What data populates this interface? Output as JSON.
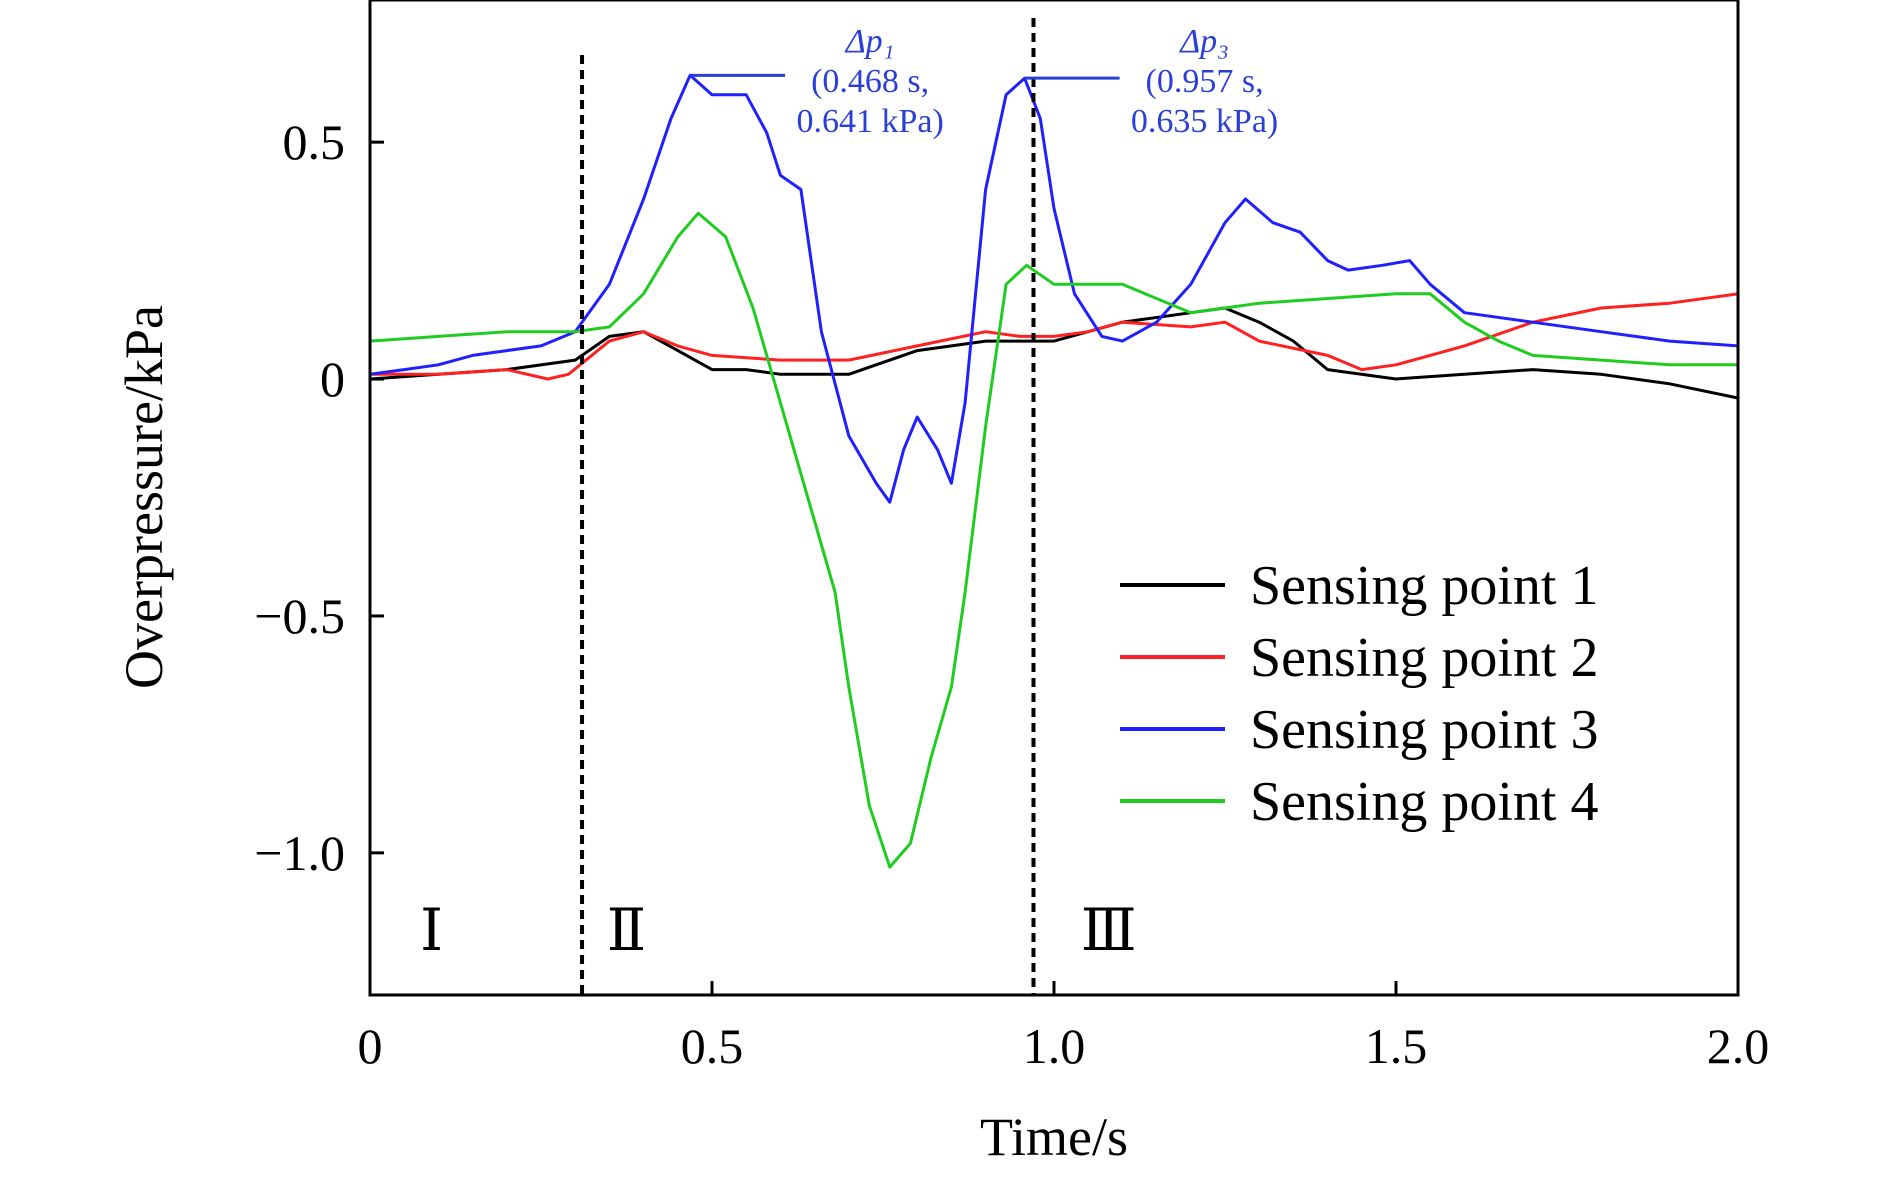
{
  "chart_data": {
    "type": "line",
    "xlabel": "Time/s",
    "ylabel": "Overpressure/kPa",
    "xlim": [
      0,
      2.0
    ],
    "ylim": [
      -1.3,
      0.8
    ],
    "x_ticks": [
      0,
      0.5,
      1.0,
      1.5,
      2.0
    ],
    "x_tick_labels": [
      "0",
      "0.5",
      "1.0",
      "1.5",
      "2.0"
    ],
    "y_ticks": [
      -1.0,
      -0.5,
      0,
      0.5
    ],
    "y_tick_labels": [
      "−1.0",
      "−0.5",
      "0",
      "0.5"
    ],
    "grid": false,
    "legend_position": "lower-right",
    "series": [
      {
        "name": "Sensing point 1",
        "color": "#000000",
        "points": [
          [
            0,
            0.0
          ],
          [
            0.1,
            0.01
          ],
          [
            0.2,
            0.02
          ],
          [
            0.3,
            0.04
          ],
          [
            0.35,
            0.09
          ],
          [
            0.4,
            0.1
          ],
          [
            0.45,
            0.06
          ],
          [
            0.5,
            0.02
          ],
          [
            0.55,
            0.02
          ],
          [
            0.6,
            0.01
          ],
          [
            0.7,
            0.01
          ],
          [
            0.8,
            0.06
          ],
          [
            0.9,
            0.08
          ],
          [
            1.0,
            0.08
          ],
          [
            1.1,
            0.12
          ],
          [
            1.2,
            0.14
          ],
          [
            1.25,
            0.15
          ],
          [
            1.3,
            0.12
          ],
          [
            1.35,
            0.08
          ],
          [
            1.4,
            0.02
          ],
          [
            1.5,
            0.0
          ],
          [
            1.6,
            0.01
          ],
          [
            1.7,
            0.02
          ],
          [
            1.8,
            0.01
          ],
          [
            1.9,
            -0.01
          ],
          [
            2.0,
            -0.04
          ]
        ]
      },
      {
        "name": "Sensing point 2",
        "color": "#ff2020",
        "points": [
          [
            0,
            0.01
          ],
          [
            0.1,
            0.01
          ],
          [
            0.2,
            0.02
          ],
          [
            0.26,
            0.0
          ],
          [
            0.29,
            0.01
          ],
          [
            0.35,
            0.08
          ],
          [
            0.4,
            0.1
          ],
          [
            0.45,
            0.07
          ],
          [
            0.5,
            0.05
          ],
          [
            0.6,
            0.04
          ],
          [
            0.7,
            0.04
          ],
          [
            0.8,
            0.07
          ],
          [
            0.9,
            0.1
          ],
          [
            0.95,
            0.09
          ],
          [
            1.0,
            0.09
          ],
          [
            1.05,
            0.1
          ],
          [
            1.1,
            0.12
          ],
          [
            1.2,
            0.11
          ],
          [
            1.25,
            0.12
          ],
          [
            1.3,
            0.08
          ],
          [
            1.4,
            0.05
          ],
          [
            1.45,
            0.02
          ],
          [
            1.5,
            0.03
          ],
          [
            1.6,
            0.07
          ],
          [
            1.7,
            0.12
          ],
          [
            1.8,
            0.15
          ],
          [
            1.9,
            0.16
          ],
          [
            2.0,
            0.18
          ]
        ]
      },
      {
        "name": "Sensing point 3",
        "color": "#2020ff",
        "points": [
          [
            0,
            0.01
          ],
          [
            0.05,
            0.02
          ],
          [
            0.1,
            0.03
          ],
          [
            0.15,
            0.05
          ],
          [
            0.2,
            0.06
          ],
          [
            0.25,
            0.07
          ],
          [
            0.3,
            0.1
          ],
          [
            0.35,
            0.2
          ],
          [
            0.4,
            0.38
          ],
          [
            0.44,
            0.55
          ],
          [
            0.468,
            0.641
          ],
          [
            0.5,
            0.6
          ],
          [
            0.55,
            0.6
          ],
          [
            0.58,
            0.52
          ],
          [
            0.6,
            0.43
          ],
          [
            0.63,
            0.4
          ],
          [
            0.66,
            0.1
          ],
          [
            0.7,
            -0.12
          ],
          [
            0.74,
            -0.22
          ],
          [
            0.76,
            -0.26
          ],
          [
            0.78,
            -0.15
          ],
          [
            0.8,
            -0.08
          ],
          [
            0.83,
            -0.15
          ],
          [
            0.85,
            -0.22
          ],
          [
            0.87,
            -0.05
          ],
          [
            0.9,
            0.4
          ],
          [
            0.93,
            0.6
          ],
          [
            0.957,
            0.635
          ],
          [
            0.98,
            0.55
          ],
          [
            1.0,
            0.36
          ],
          [
            1.03,
            0.18
          ],
          [
            1.07,
            0.09
          ],
          [
            1.1,
            0.08
          ],
          [
            1.15,
            0.12
          ],
          [
            1.2,
            0.2
          ],
          [
            1.25,
            0.33
          ],
          [
            1.28,
            0.38
          ],
          [
            1.32,
            0.33
          ],
          [
            1.36,
            0.31
          ],
          [
            1.4,
            0.25
          ],
          [
            1.43,
            0.23
          ],
          [
            1.48,
            0.24
          ],
          [
            1.52,
            0.25
          ],
          [
            1.55,
            0.2
          ],
          [
            1.6,
            0.14
          ],
          [
            1.7,
            0.12
          ],
          [
            1.8,
            0.1
          ],
          [
            1.9,
            0.08
          ],
          [
            2.0,
            0.07
          ]
        ]
      },
      {
        "name": "Sensing point 4",
        "color": "#20cc20",
        "points": [
          [
            0,
            0.08
          ],
          [
            0.1,
            0.09
          ],
          [
            0.2,
            0.1
          ],
          [
            0.3,
            0.1
          ],
          [
            0.35,
            0.11
          ],
          [
            0.4,
            0.18
          ],
          [
            0.45,
            0.3
          ],
          [
            0.48,
            0.35
          ],
          [
            0.52,
            0.3
          ],
          [
            0.56,
            0.15
          ],
          [
            0.6,
            -0.05
          ],
          [
            0.65,
            -0.3
          ],
          [
            0.68,
            -0.45
          ],
          [
            0.7,
            -0.65
          ],
          [
            0.73,
            -0.9
          ],
          [
            0.76,
            -1.03
          ],
          [
            0.79,
            -0.98
          ],
          [
            0.82,
            -0.8
          ],
          [
            0.85,
            -0.65
          ],
          [
            0.87,
            -0.45
          ],
          [
            0.9,
            -0.1
          ],
          [
            0.93,
            0.2
          ],
          [
            0.96,
            0.24
          ],
          [
            1.0,
            0.2
          ],
          [
            1.05,
            0.2
          ],
          [
            1.1,
            0.2
          ],
          [
            1.15,
            0.17
          ],
          [
            1.2,
            0.14
          ],
          [
            1.25,
            0.15
          ],
          [
            1.3,
            0.16
          ],
          [
            1.4,
            0.17
          ],
          [
            1.5,
            0.18
          ],
          [
            1.55,
            0.18
          ],
          [
            1.6,
            0.12
          ],
          [
            1.65,
            0.08
          ],
          [
            1.7,
            0.05
          ],
          [
            1.8,
            0.04
          ],
          [
            1.9,
            0.03
          ],
          [
            2.0,
            0.03
          ]
        ]
      }
    ],
    "vlines": [
      0.31,
      0.97
    ],
    "regions": [
      {
        "label": "Ⅰ",
        "x": 0.09
      },
      {
        "label": "Ⅱ",
        "x": 0.375
      },
      {
        "label": "Ⅲ",
        "x": 1.08
      }
    ],
    "annotations": [
      {
        "point": [
          0.468,
          0.641
        ],
        "lines": [
          "Δp₁",
          "(0.468 s,",
          "0.641 kPa)"
        ]
      },
      {
        "point": [
          0.957,
          0.635
        ],
        "lines": [
          "Δp₃",
          "(0.957 s,",
          "0.635 kPa)"
        ]
      }
    ]
  }
}
